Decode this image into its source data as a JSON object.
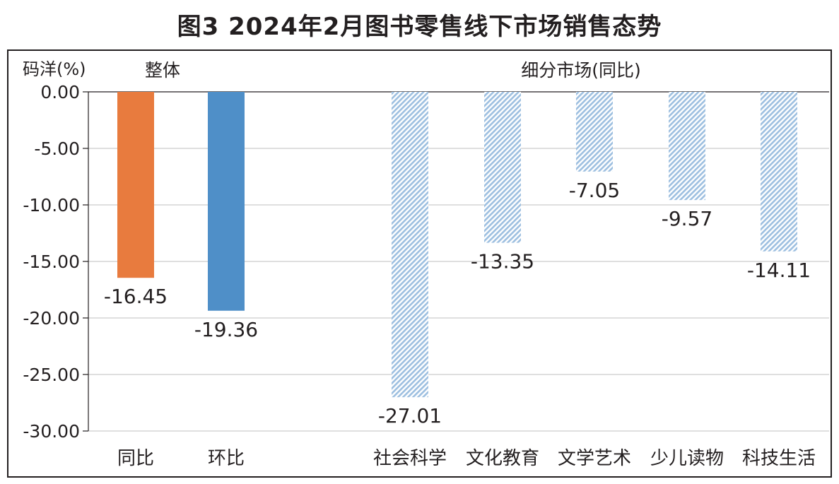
{
  "title": "图3  2024年2月图书零售线下市场销售态势",
  "chart_data": {
    "type": "bar",
    "ylabel": "码洋(%)",
    "ylim": [
      -30,
      0
    ],
    "yticks": [
      "0.00",
      "-5.00",
      "-10.00",
      "-15.00",
      "-20.00",
      "-25.00",
      "-30.00"
    ],
    "grid": true,
    "groups": [
      {
        "label": "整体",
        "bars": [
          {
            "category": "同比",
            "value": -16.45,
            "label": "-16.45",
            "color": "#e87b3e",
            "fill": "solid"
          },
          {
            "category": "环比",
            "value": -19.36,
            "label": "-19.36",
            "color": "#4f8fc8",
            "fill": "solid"
          }
        ]
      },
      {
        "label": "细分市场(同比)",
        "bars": [
          {
            "category": "社会科学",
            "value": -27.01,
            "label": "-27.01",
            "color": "#9dbfe0",
            "fill": "hatched"
          },
          {
            "category": "文化教育",
            "value": -13.35,
            "label": "-13.35",
            "color": "#9dbfe0",
            "fill": "hatched"
          },
          {
            "category": "文学艺术",
            "value": -7.05,
            "label": "-7.05",
            "color": "#9dbfe0",
            "fill": "hatched"
          },
          {
            "category": "少儿读物",
            "value": -9.57,
            "label": "-9.57",
            "color": "#9dbfe0",
            "fill": "hatched"
          },
          {
            "category": "科技生活",
            "value": -14.11,
            "label": "-14.11",
            "color": "#9dbfe0",
            "fill": "hatched"
          }
        ]
      }
    ]
  }
}
